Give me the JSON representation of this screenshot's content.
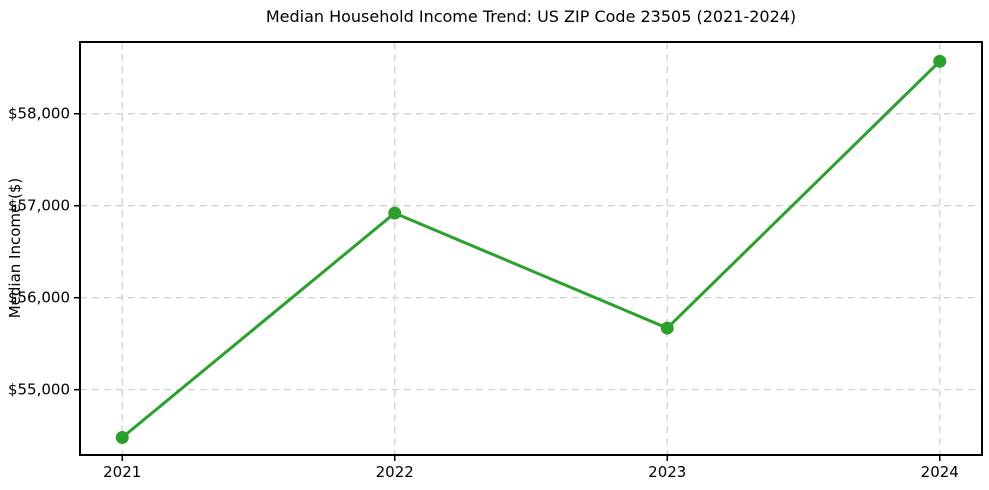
{
  "chart_data": {
    "type": "line",
    "title": "Median Household Income Trend: US ZIP Code 23505 (2021-2024)",
    "xlabel": "",
    "ylabel": "Median Income ($)",
    "series": [
      {
        "name": "Median Household Income",
        "x": [
          2021,
          2022,
          2023,
          2024
        ],
        "values": [
          54480,
          56920,
          55670,
          58570
        ]
      }
    ],
    "x_tick_labels": [
      "2021",
      "2022",
      "2023",
      "2024"
    ],
    "y_ticks": [
      {
        "value": 55000,
        "label": "$55,000"
      },
      {
        "value": 56000,
        "label": "$56,000"
      },
      {
        "value": 57000,
        "label": "$57,000"
      },
      {
        "value": 58000,
        "label": "$58,000"
      }
    ],
    "xlim": [
      2020.845,
      2024.155
    ],
    "ylim": [
      54290,
      58780
    ],
    "grid": true,
    "grid_style": "dashed",
    "legend": "none",
    "colors": {
      "line": "#2ca02c",
      "marker": "#2ca02c",
      "grid": "#cccccc",
      "spine": "#000000",
      "background": "#ffffff",
      "text": "#000000"
    },
    "marker": "circle",
    "line_width": 3,
    "marker_diameter": 13
  }
}
